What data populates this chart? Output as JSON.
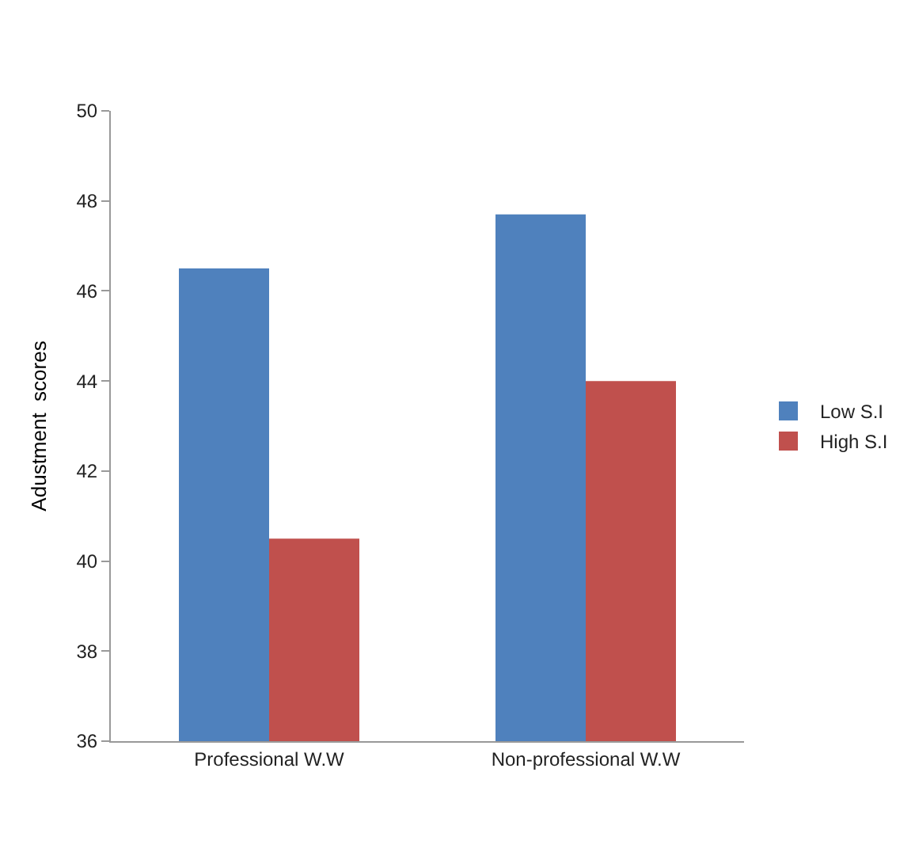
{
  "chart_data": {
    "type": "bar",
    "ylabel": "Adustment  scores",
    "categories": [
      "Professional W.W",
      "Non-professional W.W"
    ],
    "series": [
      {
        "name": "Low S.I",
        "color": "#4f81bd",
        "values": [
          46.5,
          47.7
        ]
      },
      {
        "name": "High S.I",
        "color": "#c0504d",
        "values": [
          40.5,
          44.0
        ]
      }
    ],
    "ylim": [
      36,
      50
    ],
    "yticks": [
      36,
      38,
      40,
      42,
      44,
      46,
      48,
      50
    ],
    "legend": "right"
  }
}
